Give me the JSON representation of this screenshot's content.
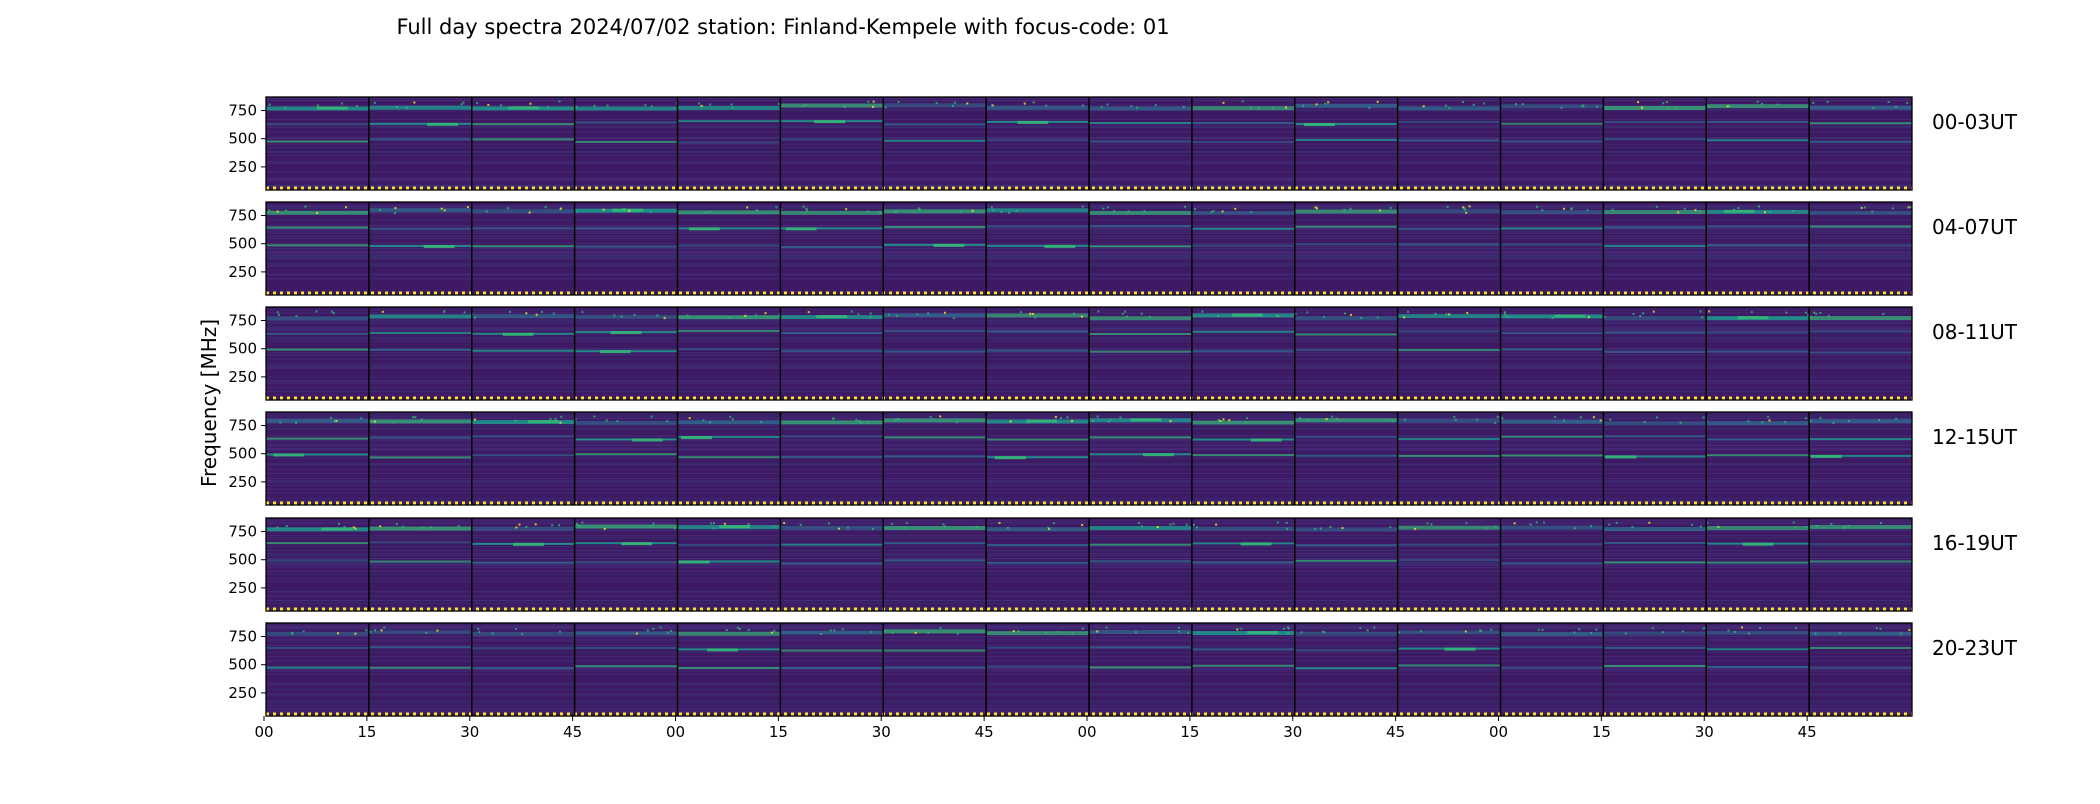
{
  "chart_data": {
    "type": "heatmap",
    "title": "Full day spectra 2024/07/02 station: Finland-Kempele with focus-code: 01",
    "ylabel": "Frequency [MHz]",
    "xlabel": "",
    "colormap": "viridis",
    "grid": false,
    "yticks": [
      250,
      500,
      750
    ],
    "ylim": [
      45,
      870
    ],
    "xticks": [
      "00",
      "15",
      "30",
      "45",
      "00",
      "15",
      "30",
      "45",
      "00",
      "15",
      "30",
      "45",
      "00",
      "15",
      "30",
      "45"
    ],
    "rows": [
      {
        "label": "00-03UT"
      },
      {
        "label": "04-07UT"
      },
      {
        "label": "08-11UT"
      },
      {
        "label": "12-15UT"
      },
      {
        "label": "16-19UT"
      },
      {
        "label": "20-23UT"
      }
    ],
    "segments_per_row": 16,
    "minutes_per_segment": 15,
    "bright_bands_mhz": [
      800,
      650,
      490
    ],
    "colors": {
      "background": "#3d1a63",
      "low": "#440154",
      "mid": "#31688e",
      "high": "#35b779",
      "peak": "#fde725",
      "separator": "#000000"
    }
  }
}
